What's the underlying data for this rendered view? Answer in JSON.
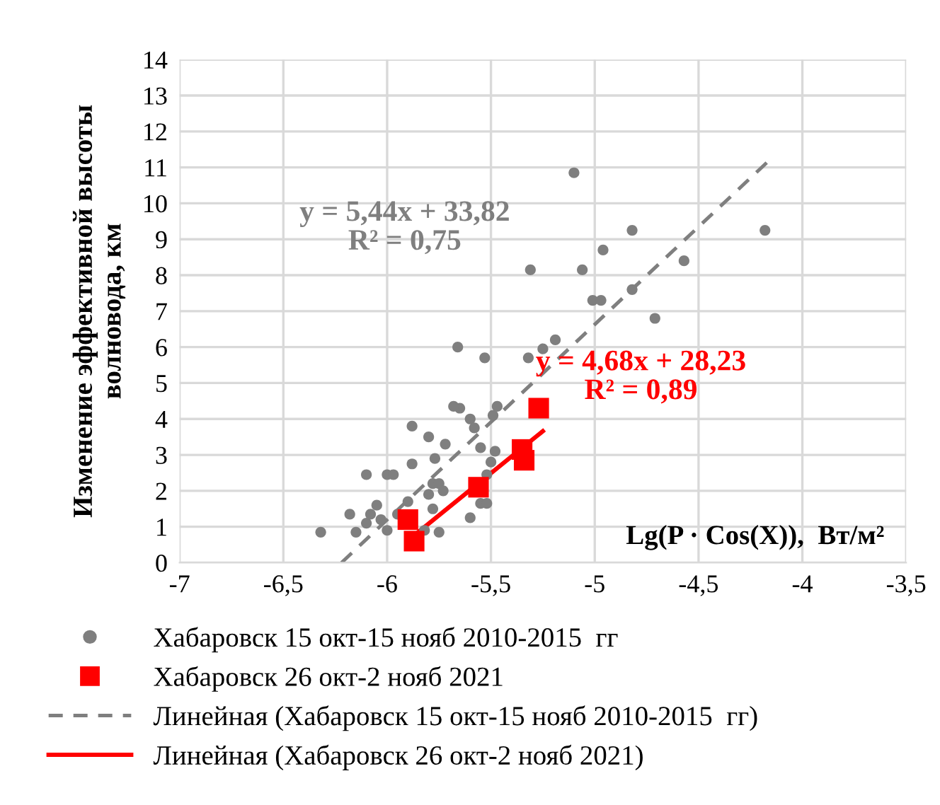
{
  "chart_data": {
    "type": "scatter",
    "xlabel": "Lg(P · Cos(X)),  Вт/м²",
    "ylabel": "Изменение эффективной высоты\nволновода, км",
    "xlim": [
      -7,
      -3.5
    ],
    "xticks": [
      {
        "value": -7,
        "label": "-7"
      },
      {
        "value": -6.5,
        "label": "-6,5"
      },
      {
        "value": -6,
        "label": "-6"
      },
      {
        "value": -5.5,
        "label": "-5,5"
      },
      {
        "value": -5,
        "label": "-5"
      },
      {
        "value": -4.5,
        "label": "-4,5"
      },
      {
        "value": -4,
        "label": "-4"
      },
      {
        "value": -3.5,
        "label": "-3,5"
      }
    ],
    "ylim": [
      0,
      14
    ],
    "yticks": [
      0,
      1,
      2,
      3,
      4,
      5,
      6,
      7,
      8,
      9,
      10,
      11,
      12,
      13,
      14
    ],
    "grid": true,
    "legend": "bottom",
    "series": [
      {
        "name": "Хабаровск 15 окт-15 нояб 2010-2015  гг",
        "marker": "circle",
        "color": "#7f7f7f",
        "x": [
          -6.32,
          -6.15,
          -6.18,
          -6.1,
          -6.08,
          -6.05,
          -6.03,
          -6.0,
          -6.1,
          -6.0,
          -5.97,
          -5.95,
          -5.9,
          -5.88,
          -5.88,
          -5.85,
          -5.82,
          -5.8,
          -5.78,
          -5.78,
          -5.75,
          -5.73,
          -5.8,
          -5.77,
          -5.75,
          -5.72,
          -5.65,
          -5.6,
          -5.6,
          -5.55,
          -5.55,
          -5.52,
          -5.52,
          -5.5,
          -5.48,
          -5.58,
          -5.1,
          -4.82,
          -4.18,
          -4.96,
          -5.31,
          -5.06,
          -4.57,
          -5.01,
          -4.97,
          -4.82,
          -4.71,
          -5.66,
          -5.53,
          -5.32,
          -5.25,
          -5.19,
          -5.68,
          -5.47,
          -5.49
        ],
        "values": [
          0.85,
          0.85,
          1.35,
          1.1,
          1.35,
          1.6,
          1.2,
          0.9,
          2.45,
          2.45,
          2.45,
          1.35,
          1.7,
          2.75,
          3.8,
          null,
          0.9,
          1.9,
          2.2,
          1.5,
          2.2,
          2.0,
          3.5,
          2.9,
          0.85,
          3.3,
          4.3,
          4.0,
          1.25,
          1.65,
          3.2,
          1.65,
          2.45,
          2.8,
          3.1,
          3.75,
          10.85,
          9.25,
          9.25,
          8.7,
          8.15,
          8.15,
          8.4,
          7.3,
          7.3,
          7.6,
          6.8,
          6.0,
          5.7,
          5.7,
          5.95,
          6.2,
          4.35,
          4.35,
          4.1
        ]
      },
      {
        "name": "Хабаровск 26 окт-2 нояб 2021",
        "marker": "square",
        "color": "#ff0000",
        "x": [
          -5.9,
          -5.87,
          -5.56,
          -5.35,
          -5.34,
          -5.27
        ],
        "values": [
          1.2,
          0.6,
          2.1,
          3.15,
          2.85,
          4.3
        ]
      },
      {
        "name": "Линейная (Хабаровск 15 окт-15 нояб 2010-2015  гг)",
        "type": "line",
        "line_style": "dashed",
        "color": "#7f7f7f",
        "x": [
          -6.22,
          -4.17
        ],
        "values": [
          0.0,
          11.14
        ]
      },
      {
        "name": "Линейная (Хабаровск 26 окт-2 нояб 2021)",
        "type": "line",
        "line_style": "solid",
        "color": "#ff0000",
        "x": [
          -5.87,
          -5.25
        ],
        "values": [
          0.76,
          3.66
        ]
      }
    ],
    "annotations": [
      "y = 5,44x + 33,82\nR² = 0,75",
      "y = 4,68x + 28,23\nR² = 0,89"
    ]
  }
}
